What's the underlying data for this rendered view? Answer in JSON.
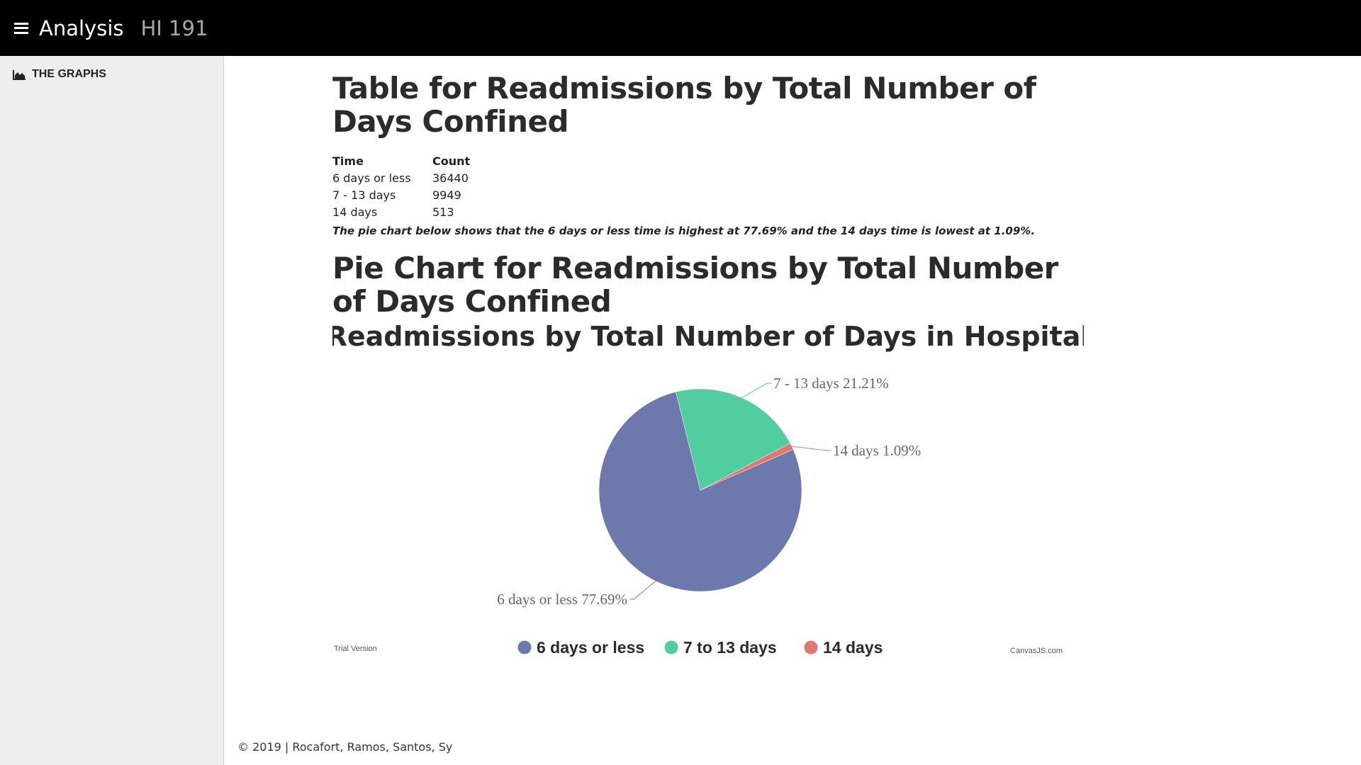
{
  "topbar": {
    "menu_icon": "hamburger-menu-icon",
    "title": "Analysis",
    "subtitle": "HI 191"
  },
  "sidebar": {
    "items": [
      {
        "label": "THE GRAPHS",
        "icon": "area-chart-icon"
      }
    ]
  },
  "main": {
    "table_heading": "Table for Readmissions by Total Number of Days Confined",
    "table": {
      "headers": [
        "Time",
        "Count"
      ],
      "rows": [
        [
          "6 days or less",
          "36440"
        ],
        [
          "7 - 13 days",
          "9949"
        ],
        [
          "14 days",
          "513"
        ]
      ]
    },
    "note": "The pie chart below shows that the 6 days or less time is highest at 77.69% and the 14 days time is lowest at 1.09%.",
    "chart_heading": "Pie Chart for Readmissions by Total Number of Days Confined"
  },
  "chart_data": {
    "type": "pie",
    "title": "Readmissions by Total Number of Days in Hospital",
    "categories": [
      "6 days or less",
      "7 - 13 days",
      "14 days"
    ],
    "values": [
      77.69,
      21.21,
      1.09
    ],
    "slice_labels": [
      "6 days or less 77.69%",
      "7 - 13 days 21.21%",
      "14 days 1.09%"
    ],
    "legend": [
      "6 days or less",
      "7 to 13 days",
      "14 days"
    ],
    "legend_position": "bottom",
    "colors": [
      "#6d78ad",
      "#51cda0",
      "#df7970"
    ],
    "watermark_left": "Trial Version",
    "watermark_right": "CanvasJS.com"
  },
  "footer": {
    "text": "© 2019 | Rocafort, Ramos, Santos, Sy"
  }
}
